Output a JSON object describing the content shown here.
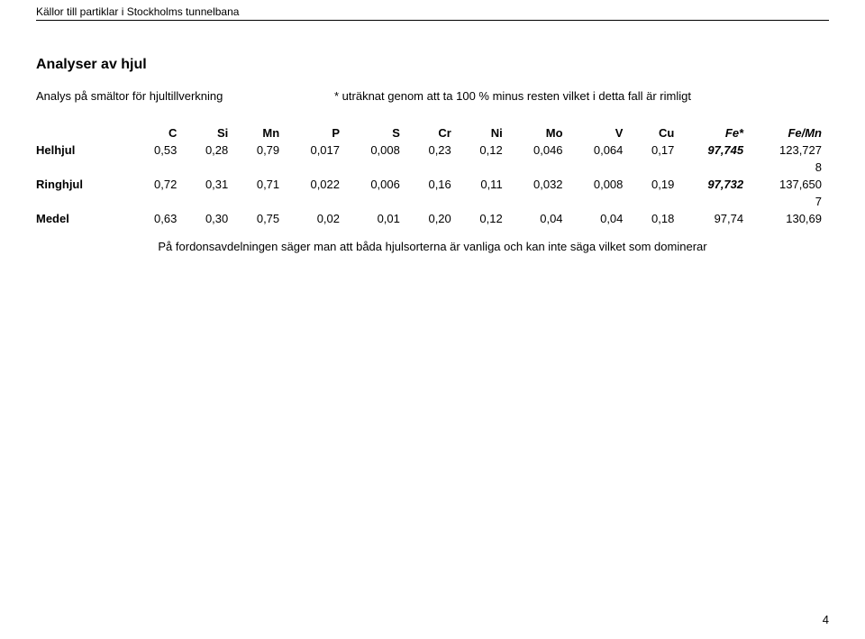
{
  "header": {
    "running_title": "Källor till partiklar i Stockholms tunnelbana"
  },
  "title": "Analyser av hjul",
  "note": {
    "left": "Analys på smältor för hjultillverkning",
    "right": "* uträknat genom att ta 100 % minus resten vilket i detta fall är rimligt"
  },
  "table": {
    "columns": [
      "",
      "C",
      "Si",
      "Mn",
      "P",
      "S",
      "Cr",
      "Ni",
      "Mo",
      "V",
      "Cu",
      "Fe*",
      "Fe/Mn"
    ],
    "rows": [
      {
        "label": "Helhjul",
        "cells": [
          "0,53",
          "0,28",
          "0,79",
          "0,017",
          "0,008",
          "0,23",
          "0,12",
          "0,046",
          "0,064",
          "0,17",
          "97,745",
          "123,727"
        ],
        "second_line": "8"
      },
      {
        "label": "Ringhjul",
        "cells": [
          "0,72",
          "0,31",
          "0,71",
          "0,022",
          "0,006",
          "0,16",
          "0,11",
          "0,032",
          "0,008",
          "0,19",
          "97,732",
          "137,650"
        ],
        "second_line": "7"
      }
    ],
    "summary": {
      "label": "Medel",
      "cells": [
        "0,63",
        "0,30",
        "0,75",
        "0,02",
        "0,01",
        "0,20",
        "0,12",
        "0,04",
        "0,04",
        "0,18",
        "97,74",
        "130,69"
      ]
    }
  },
  "caption": "På fordonsavdelningen säger man att båda hjulsorterna är vanliga och kan inte säga vilket som dominerar",
  "page_number": "4",
  "style": {
    "font_family": "Arial",
    "body_fontsize_pt": 10,
    "title_fontsize_pt": 12,
    "text_color": "#000000",
    "background_color": "#ffffff",
    "rule_color": "#000000",
    "italic_columns": [
      "Fe*",
      "Fe/Mn"
    ],
    "bold_columns": [
      "Fe*",
      "Fe/Mn"
    ],
    "bold_row_labels": true
  }
}
